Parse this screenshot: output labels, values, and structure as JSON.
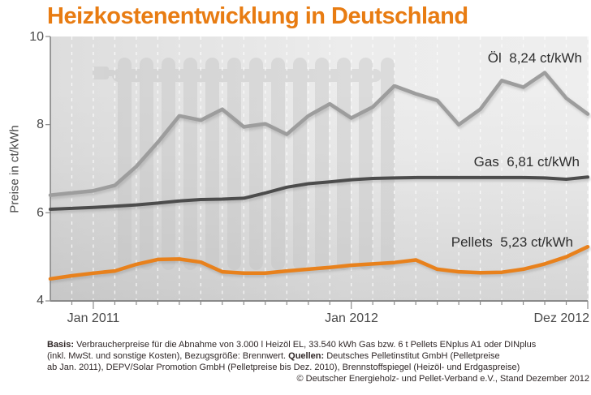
{
  "title": "Heizkostenentwicklung in Deutschland",
  "y_axis": {
    "title": "Preise in ct/kWh",
    "ticks": [
      "10",
      "8",
      "6",
      "4"
    ]
  },
  "x_axis": {
    "labels": [
      "Jan 2011",
      "Jan 2012",
      "Dez 2012"
    ]
  },
  "colors": {
    "title_orange": "#e87c12",
    "oil_line": "#9d9d9d",
    "gas_line": "#4c4c4c",
    "pellets_line": "#e8811c",
    "plot_background": "#e6e6e6",
    "gridline": "#ffffff"
  },
  "footer": {
    "line1_label": "Basis:",
    "line1_text": " Verbraucherpreise für die Abnahme von 3.000 l Heizöl EL, 33.540 kWh Gas bzw. 6 t Pellets ENplus A1 oder DINplus",
    "line2_text1": "(inkl. MwSt. und sonstige Kosten), Bezugsgröße: Brennwert. ",
    "line2_label": "Quellen:",
    "line2_text2": " Deutsches Pelletinstitut GmbH (Pelletpreise",
    "line3_text": "ab Jan. 2011), DEPV/Solar Promotion GmbH (Pelletpreise bis Dez. 2010), Brennstoffspiegel (Heizöl- und Erdgaspreise)",
    "line4_text": "© Deutscher Energieholz- und Pellet-Verband e.V., Stand Dezember 2012"
  },
  "chart_data": {
    "type": "line",
    "title": "Heizkostenentwicklung in Deutschland",
    "xlabel": "",
    "ylabel": "Preise in ct/kWh",
    "ylim": [
      4,
      10
    ],
    "y_tick_values": [
      10,
      8,
      6,
      4
    ],
    "grid": "vertical-white-dashed-monthly",
    "legend_position": "inline-right",
    "x": [
      "Nov 2010",
      "Dez 2010",
      "Jan 2011",
      "Feb 2011",
      "Mär 2011",
      "Apr 2011",
      "Mai 2011",
      "Jun 2011",
      "Jul 2011",
      "Aug 2011",
      "Sep 2011",
      "Okt 2011",
      "Nov 2011",
      "Dez 2011",
      "Jan 2012",
      "Feb 2012",
      "Mär 2012",
      "Apr 2012",
      "Mai 2012",
      "Jun 2012",
      "Jul 2012",
      "Aug 2012",
      "Sep 2012",
      "Okt 2012",
      "Nov 2012",
      "Dez 2012"
    ],
    "major_tick_indices": [
      2,
      14,
      25
    ],
    "series": [
      {
        "name": "Öl",
        "label": "Öl  8,24 ct/kWh",
        "final_value_ct_per_kwh": 8.24,
        "color": "#9d9d9d",
        "width": 4.5,
        "values": [
          6.4,
          6.45,
          6.5,
          6.62,
          7.05,
          7.6,
          8.2,
          8.1,
          8.35,
          7.95,
          8.02,
          7.78,
          8.2,
          8.47,
          8.15,
          8.4,
          8.88,
          8.7,
          8.55,
          8.0,
          8.35,
          9.0,
          8.85,
          9.18,
          8.6,
          8.24
        ]
      },
      {
        "name": "Gas",
        "label": "Gas  6,81 ct/kWh",
        "final_value_ct_per_kwh": 6.81,
        "color": "#4c4c4c",
        "width": 4,
        "values": [
          6.08,
          6.1,
          6.12,
          6.15,
          6.18,
          6.22,
          6.27,
          6.3,
          6.31,
          6.33,
          6.45,
          6.58,
          6.66,
          6.7,
          6.75,
          6.78,
          6.79,
          6.8,
          6.8,
          6.8,
          6.8,
          6.8,
          6.8,
          6.79,
          6.76,
          6.81
        ]
      },
      {
        "name": "Pellets",
        "label": "Pellets  5,23 ct/kWh",
        "final_value_ct_per_kwh": 5.23,
        "color": "#e8811c",
        "width": 4.5,
        "values": [
          4.5,
          4.57,
          4.63,
          4.68,
          4.83,
          4.94,
          4.95,
          4.88,
          4.66,
          4.63,
          4.63,
          4.68,
          4.72,
          4.76,
          4.81,
          4.84,
          4.87,
          4.93,
          4.72,
          4.66,
          4.64,
          4.65,
          4.72,
          4.84,
          5.0,
          5.23
        ]
      }
    ]
  }
}
